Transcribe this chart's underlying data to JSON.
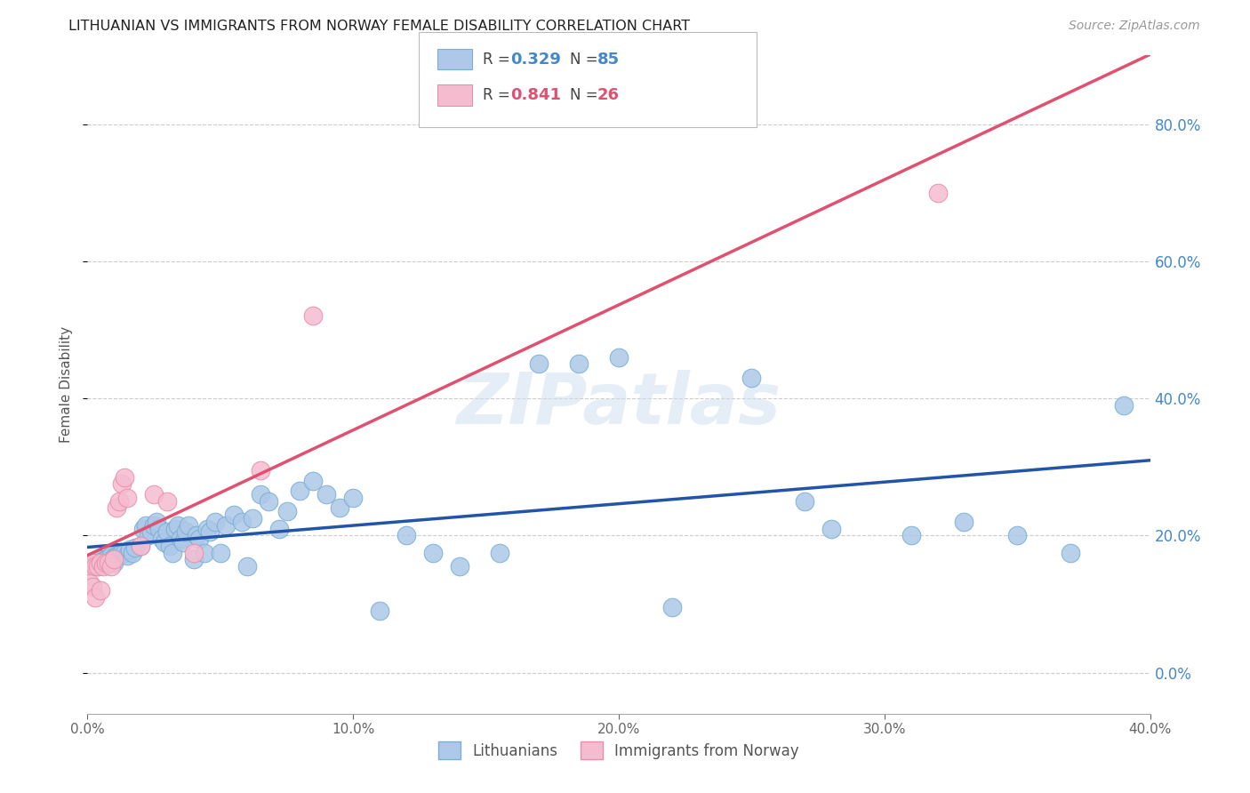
{
  "title": "LITHUANIAN VS IMMIGRANTS FROM NORWAY FEMALE DISABILITY CORRELATION CHART",
  "source": "Source: ZipAtlas.com",
  "ylabel": "Female Disability",
  "xmin": 0.0,
  "xmax": 0.4,
  "ymin": -0.06,
  "ymax": 0.9,
  "yticks": [
    0.0,
    0.2,
    0.4,
    0.6,
    0.8
  ],
  "xticks": [
    0.0,
    0.1,
    0.2,
    0.3,
    0.4
  ],
  "blue_R": 0.329,
  "blue_N": 85,
  "pink_R": 0.841,
  "pink_N": 26,
  "blue_color": "#adc8e8",
  "blue_edge": "#7aafd4",
  "pink_color": "#f5bcd0",
  "pink_edge": "#e88fa8",
  "blue_line_color": "#2255aa",
  "pink_line_color": "#e05070",
  "legend_label_blue": "Lithuanians",
  "legend_label_pink": "Immigrants from Norway",
  "watermark": "ZIPatlas",
  "background_color": "#ffffff",
  "grid_color": "#cccccc",
  "blue_x": [
    0.001,
    0.002,
    0.002,
    0.003,
    0.003,
    0.004,
    0.004,
    0.005,
    0.005,
    0.006,
    0.006,
    0.007,
    0.007,
    0.008,
    0.008,
    0.009,
    0.009,
    0.01,
    0.01,
    0.011,
    0.012,
    0.013,
    0.014,
    0.015,
    0.016,
    0.017,
    0.018,
    0.02,
    0.021,
    0.022,
    0.023,
    0.024,
    0.025,
    0.026,
    0.027,
    0.028,
    0.029,
    0.03,
    0.031,
    0.032,
    0.033,
    0.034,
    0.035,
    0.036,
    0.037,
    0.038,
    0.04,
    0.041,
    0.042,
    0.044,
    0.045,
    0.046,
    0.048,
    0.05,
    0.052,
    0.055,
    0.058,
    0.06,
    0.062,
    0.065,
    0.068,
    0.072,
    0.075,
    0.08,
    0.085,
    0.09,
    0.095,
    0.1,
    0.11,
    0.12,
    0.13,
    0.14,
    0.155,
    0.17,
    0.185,
    0.2,
    0.22,
    0.25,
    0.27,
    0.28,
    0.31,
    0.33,
    0.35,
    0.37,
    0.39
  ],
  "blue_y": [
    0.16,
    0.158,
    0.162,
    0.157,
    0.163,
    0.155,
    0.165,
    0.158,
    0.165,
    0.157,
    0.163,
    0.158,
    0.165,
    0.16,
    0.168,
    0.162,
    0.17,
    0.16,
    0.168,
    0.17,
    0.172,
    0.175,
    0.175,
    0.17,
    0.18,
    0.175,
    0.182,
    0.185,
    0.21,
    0.215,
    0.2,
    0.205,
    0.215,
    0.22,
    0.21,
    0.195,
    0.19,
    0.205,
    0.185,
    0.175,
    0.21,
    0.215,
    0.195,
    0.19,
    0.205,
    0.215,
    0.165,
    0.2,
    0.195,
    0.175,
    0.21,
    0.205,
    0.22,
    0.175,
    0.215,
    0.23,
    0.22,
    0.155,
    0.225,
    0.26,
    0.25,
    0.21,
    0.235,
    0.265,
    0.28,
    0.26,
    0.24,
    0.255,
    0.09,
    0.2,
    0.175,
    0.155,
    0.175,
    0.45,
    0.45,
    0.46,
    0.095,
    0.43,
    0.25,
    0.21,
    0.2,
    0.22,
    0.2,
    0.175,
    0.39
  ],
  "pink_x": [
    0.001,
    0.001,
    0.002,
    0.002,
    0.003,
    0.003,
    0.004,
    0.005,
    0.005,
    0.006,
    0.007,
    0.008,
    0.009,
    0.01,
    0.011,
    0.012,
    0.013,
    0.014,
    0.015,
    0.02,
    0.025,
    0.03,
    0.04,
    0.065,
    0.085,
    0.32
  ],
  "pink_y": [
    0.155,
    0.13,
    0.16,
    0.125,
    0.155,
    0.11,
    0.155,
    0.16,
    0.12,
    0.155,
    0.16,
    0.16,
    0.155,
    0.165,
    0.24,
    0.25,
    0.275,
    0.285,
    0.255,
    0.185,
    0.26,
    0.25,
    0.175,
    0.295,
    0.52,
    0.7
  ]
}
